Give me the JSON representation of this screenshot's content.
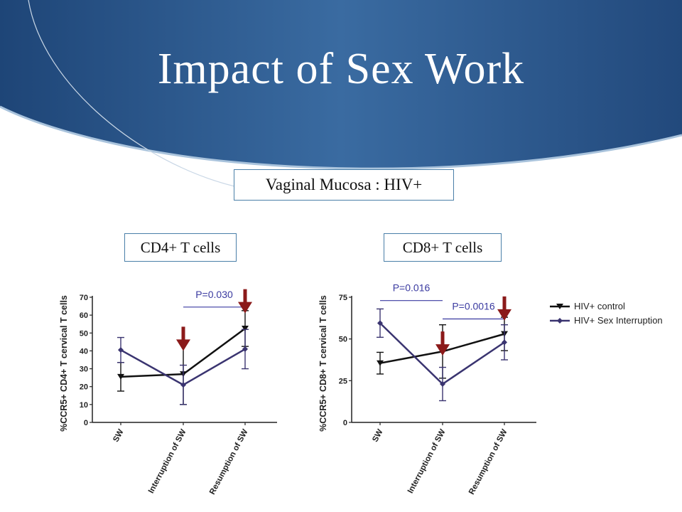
{
  "slide": {
    "title": "Impact of Sex Work",
    "subtitle": "Vaginal Mucosa : HIV+",
    "panel_labels": [
      "CD4+ T cells",
      "CD8+ T cells"
    ]
  },
  "colors": {
    "banner": "#2f5f95",
    "control": "#111111",
    "interruption": "#3a3470",
    "arrow": "#8b1a1a",
    "pvalue": "#3a3aa0"
  },
  "legend": [
    "HIV+ control",
    "HIV+ Sex Interruption"
  ],
  "chart_data": [
    {
      "type": "line",
      "categories": [
        "SW",
        "Interruption of SW",
        "Resumption of SW"
      ],
      "ylabel": "%CCR5+ CD4+ T cervical T cells",
      "ylim": [
        0,
        70
      ],
      "yticks": [
        0,
        10,
        20,
        30,
        40,
        50,
        60,
        70
      ],
      "series": [
        {
          "name": "HIV+ control",
          "values": [
            25.5,
            27,
            52.5
          ],
          "err": [
            8,
            17,
            10
          ]
        },
        {
          "name": "HIV+ Sex Interruption",
          "values": [
            40.5,
            21,
            41
          ],
          "err": [
            7,
            11,
            11
          ]
        }
      ],
      "annotations": [
        {
          "text": "P=0.030",
          "from": 1,
          "to": 2,
          "level": 64.5
        }
      ],
      "arrows": [
        {
          "x": 1,
          "y": 40
        },
        {
          "x": 2,
          "y": 61
        }
      ]
    },
    {
      "type": "line",
      "categories": [
        "SW",
        "Interruption of SW",
        "Resumption of SW"
      ],
      "ylabel": "%CCR5+ CD8+ T cervical T cells",
      "ylim": [
        0,
        75
      ],
      "yticks": [
        0,
        25,
        50,
        75
      ],
      "series": [
        {
          "name": "HIV+ control",
          "values": [
            35.5,
            42.5,
            53
          ],
          "err": [
            6.5,
            16,
            10
          ]
        },
        {
          "name": "HIV+ Sex Interruption",
          "values": [
            59.5,
            23,
            48
          ],
          "err": [
            8.5,
            10,
            10.5
          ]
        }
      ],
      "annotations": [
        {
          "text": "P=0.016",
          "from": 0,
          "to": 1,
          "level": 73
        },
        {
          "text": "P=0.0016",
          "from": 1,
          "to": 2,
          "level": 62
        }
      ],
      "arrows": [
        {
          "x": 1,
          "y": 40
        },
        {
          "x": 2,
          "y": 61
        }
      ]
    }
  ]
}
